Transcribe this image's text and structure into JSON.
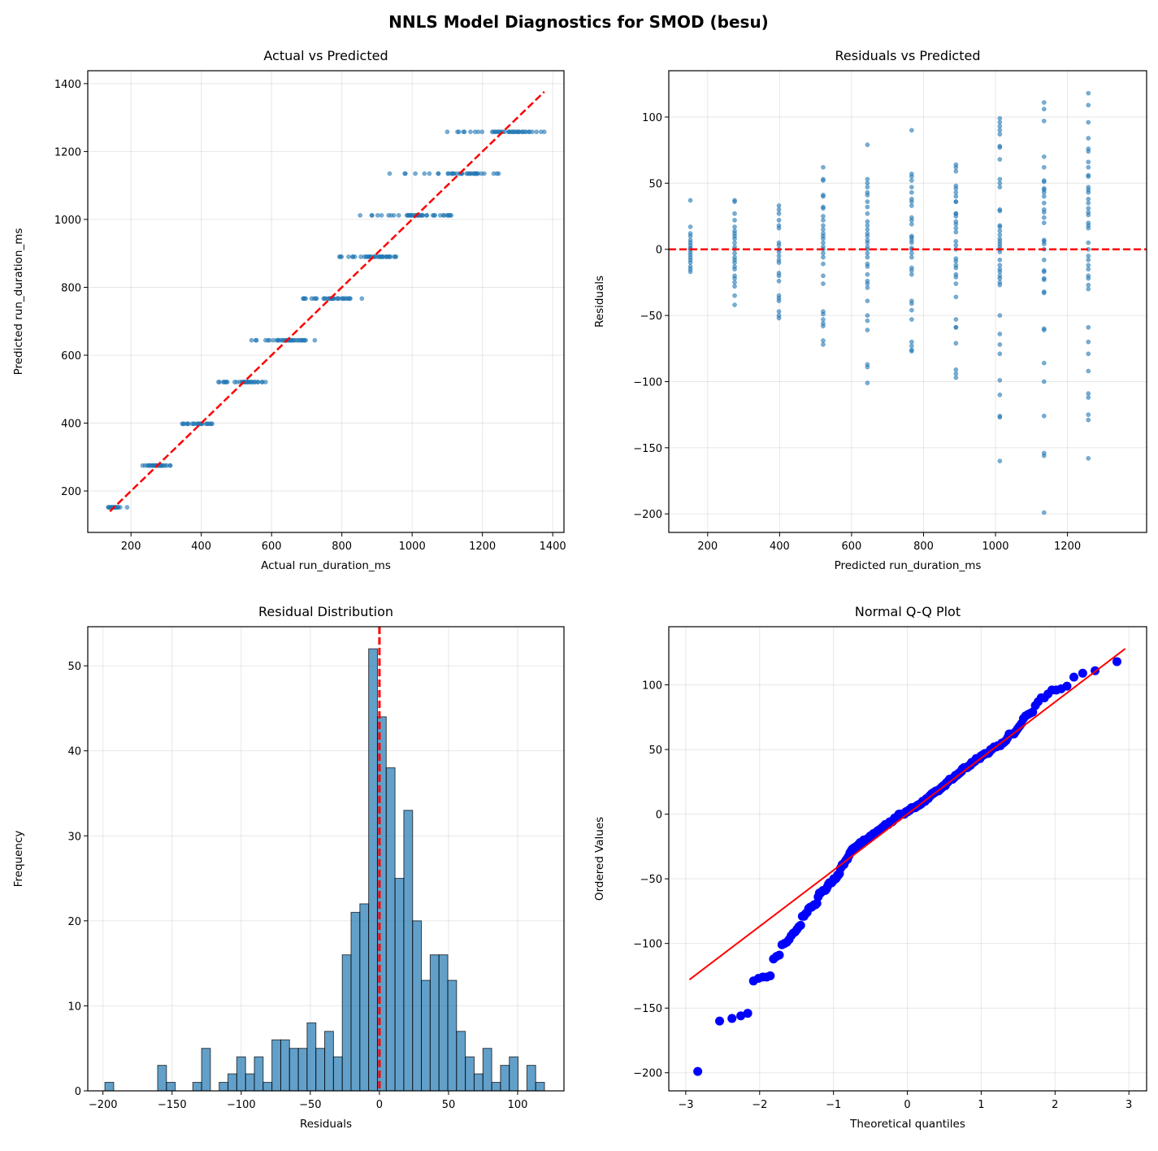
{
  "suptitle": "NNLS Model Diagnostics for SMOD (besu)",
  "colors": {
    "scatter": "#1f77b4",
    "reference": "#ff0000",
    "qq_points": "#0000ff",
    "hist_fill": "#1f77b4",
    "hist_edge": "#000000",
    "grid": "#b0b0b0"
  },
  "chart_data": [
    {
      "type": "scatter",
      "title": "Actual vs Predicted",
      "xlabel": "Actual run_duration_ms",
      "ylabel": "Predicted run_duration_ms",
      "xlim": [
        77,
        1432
      ],
      "ylim": [
        78,
        1438
      ],
      "xticks": [
        200,
        400,
        600,
        800,
        1000,
        1200,
        1400
      ],
      "yticks": [
        200,
        400,
        600,
        800,
        1000,
        1200,
        1400
      ],
      "grid": true,
      "reference_line": {
        "style": "dashed",
        "from": [
          140,
          140
        ],
        "to": [
          1376,
          1376
        ]
      },
      "note_points": "x = predicted + residual, y = predicted (points from groups below)"
    },
    {
      "type": "scatter",
      "title": "Residuals vs Predicted",
      "xlabel": "Predicted run_duration_ms",
      "ylabel": "Residuals",
      "xlim": [
        92,
        1420
      ],
      "ylim": [
        -214,
        135
      ],
      "xticks": [
        200,
        400,
        600,
        800,
        1000,
        1200
      ],
      "yticks": [
        -200,
        -150,
        -100,
        -50,
        0,
        50,
        100
      ],
      "grid": true,
      "reference_line": {
        "style": "dashed",
        "y": 0
      },
      "groups": [
        {
          "predicted": 152,
          "residuals": [
            37,
            17,
            12,
            10,
            7,
            5,
            3,
            1,
            0,
            -2,
            -4,
            -6,
            -8,
            -10,
            -13,
            -15,
            -17
          ]
        },
        {
          "predicted": 275,
          "residuals": [
            37,
            36,
            27,
            22,
            17,
            14,
            12,
            10,
            8,
            5,
            2,
            0,
            -3,
            -6,
            -8,
            -10,
            -13,
            -15,
            -20,
            -22,
            -25,
            -28,
            -35,
            -42
          ]
        },
        {
          "predicted": 398,
          "residuals": [
            33,
            30,
            27,
            22,
            18,
            16,
            5,
            3,
            0,
            -2,
            -5,
            -8,
            -10,
            -18,
            -20,
            -24,
            -35,
            -37,
            -39,
            -47,
            -50,
            -52
          ]
        },
        {
          "predicted": 521,
          "residuals": [
            62,
            53,
            52,
            41,
            40,
            32,
            31,
            25,
            22,
            18,
            15,
            12,
            10,
            8,
            5,
            2,
            0,
            -3,
            -6,
            -11,
            -20,
            -26,
            -47,
            -49,
            -53,
            -56,
            -58,
            -69,
            -72
          ]
        },
        {
          "predicted": 644,
          "residuals": [
            79,
            53,
            50,
            47,
            43,
            41,
            36,
            32,
            27,
            21,
            18,
            15,
            12,
            10,
            7,
            5,
            2,
            0,
            -3,
            -6,
            -11,
            -13,
            -19,
            -24,
            -26,
            -29,
            -39,
            -50,
            -54,
            -61,
            -87,
            -89,
            -101
          ]
        },
        {
          "predicted": 767,
          "residuals": [
            90,
            57,
            55,
            52,
            47,
            43,
            38,
            36,
            33,
            24,
            22,
            19,
            10,
            9,
            7,
            5,
            1,
            0,
            -3,
            -6,
            -14,
            -16,
            -19,
            -39,
            -41,
            -46,
            -53,
            -70,
            -73,
            -76,
            -77
          ]
        },
        {
          "predicted": 890,
          "residuals": [
            64,
            62,
            59,
            48,
            46,
            43,
            40,
            36,
            36,
            27,
            27,
            25,
            21,
            19,
            16,
            13,
            6,
            3,
            0,
            -7,
            -9,
            -12,
            -14,
            -19,
            -21,
            -26,
            -36,
            -53,
            -59,
            -59,
            -71,
            -91,
            -94,
            -97
          ]
        },
        {
          "predicted": 1012,
          "residuals": [
            99,
            96,
            93,
            90,
            87,
            78,
            77,
            68,
            53,
            50,
            47,
            30,
            29,
            18,
            17,
            14,
            11,
            8,
            6,
            4,
            2,
            0,
            -2,
            -8,
            -12,
            -15,
            -17,
            -20,
            -22,
            -25,
            -27,
            -50,
            -64,
            -72,
            -79,
            -99,
            -110,
            -126,
            -127,
            -160
          ]
        },
        {
          "predicted": 1135,
          "residuals": [
            111,
            106,
            97,
            70,
            62,
            52,
            51,
            46,
            45,
            43,
            40,
            35,
            30,
            28,
            24,
            20,
            7,
            6,
            4,
            0,
            -8,
            -16,
            -17,
            -22,
            -23,
            -32,
            -33,
            -60,
            -61,
            -86,
            -100,
            -126,
            -154,
            -156,
            -199
          ]
        },
        {
          "predicted": 1258,
          "residuals": [
            118,
            109,
            96,
            84,
            76,
            74,
            66,
            62,
            56,
            55,
            47,
            45,
            43,
            38,
            35,
            31,
            28,
            26,
            20,
            18,
            16,
            5,
            0,
            -5,
            -8,
            -12,
            -15,
            -20,
            -22,
            -27,
            -30,
            -59,
            -70,
            -79,
            -92,
            -109,
            -112,
            -125,
            -129,
            -158
          ]
        }
      ]
    },
    {
      "type": "bar",
      "title": "Residual Distribution",
      "xlabel": "Residuals",
      "ylabel": "Frequency",
      "xlim": [
        -211,
        133.5
      ],
      "ylim": [
        0,
        54.6
      ],
      "xticks": [
        -200,
        -150,
        -100,
        -50,
        0,
        50,
        100
      ],
      "yticks": [
        0,
        10,
        20,
        30,
        40,
        50
      ],
      "grid": true,
      "bin_range": [
        -198.6,
        119.4
      ],
      "counts": [
        1,
        0,
        0,
        0,
        0,
        0,
        3,
        1,
        0,
        0,
        1,
        5,
        0,
        1,
        2,
        4,
        2,
        4,
        1,
        6,
        6,
        5,
        5,
        8,
        5,
        7,
        4,
        16,
        21,
        22,
        52,
        44,
        38,
        25,
        33,
        20,
        13,
        16,
        16,
        13,
        7,
        4,
        2,
        5,
        1,
        3,
        4,
        0,
        3,
        1
      ],
      "reference_line": {
        "style": "dashed",
        "x": 0
      }
    },
    {
      "type": "scatter",
      "title": "Normal Q-Q Plot",
      "xlabel": "Theoretical quantiles",
      "ylabel": "Ordered Values",
      "xlim": [
        -3.23,
        3.24
      ],
      "ylim": [
        -214,
        145
      ],
      "xticks": [
        -3,
        -2,
        -1,
        0,
        1,
        2,
        3
      ],
      "yticks": [
        -200,
        -150,
        -100,
        -50,
        0,
        50,
        100
      ],
      "grid": true,
      "fit_line": {
        "from": [
          -2.95,
          -128
        ],
        "to": [
          2.95,
          128
        ]
      }
    }
  ]
}
